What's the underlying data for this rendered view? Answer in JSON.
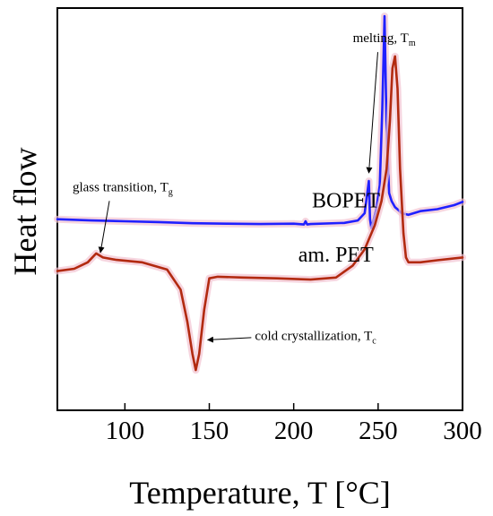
{
  "chart_data": {
    "type": "line",
    "xlabel": "Temperature, T [°C]",
    "ylabel": "Heat flow",
    "xlim": [
      60,
      300
    ],
    "xticks": [
      100,
      150,
      200,
      250,
      300
    ],
    "ylim": [
      0,
      100
    ],
    "yticks_visible": false,
    "grid": false,
    "legend": "none",
    "series": [
      {
        "name": "BOPET",
        "color": "#2020ff",
        "x": [
          60,
          80,
          100,
          120,
          140,
          160,
          180,
          200,
          206,
          207,
          208,
          210,
          230,
          238,
          242,
          244.5,
          245.2,
          246,
          247,
          249,
          251,
          252.5,
          253.8,
          255,
          256.5,
          258,
          260,
          262,
          264,
          268,
          275,
          285,
          295,
          300
        ],
        "y": [
          47.5,
          47.2,
          47.0,
          46.8,
          46.5,
          46.4,
          46.3,
          46.4,
          46.2,
          47.0,
          46.2,
          46.3,
          46.6,
          47.2,
          49.0,
          57.0,
          47.5,
          45.3,
          46.8,
          50.0,
          56.0,
          75.0,
          98.0,
          70.0,
          54.0,
          52.0,
          50.5,
          49.8,
          49.0,
          48.6,
          49.5,
          50.0,
          51.0,
          51.8
        ]
      },
      {
        "name": "am. PET",
        "color": "#b22a10",
        "x": [
          60,
          70,
          78,
          83,
          87,
          95,
          110,
          125,
          133,
          137,
          140,
          142,
          144,
          147,
          150,
          155,
          170,
          190,
          210,
          225,
          235,
          242,
          248,
          252,
          255,
          257,
          258.5,
          260,
          261.5,
          263,
          265,
          266.5,
          268,
          275,
          285,
          300
        ],
        "y": [
          34.6,
          35.2,
          36.8,
          39.0,
          38.0,
          37.4,
          36.8,
          35.0,
          30.0,
          22.0,
          14.0,
          10.0,
          14.0,
          25.0,
          32.8,
          33.2,
          33.0,
          32.8,
          32.5,
          33.0,
          36.0,
          40.0,
          46.0,
          52.0,
          60.0,
          72.0,
          85.0,
          88.0,
          80.0,
          60.0,
          44.0,
          38.0,
          36.8,
          36.8,
          37.3,
          38.0
        ]
      }
    ],
    "series_labels": [
      {
        "text": "BOPET",
        "x": 231,
        "y": 50.5
      },
      {
        "text": "am. PET",
        "x": 225,
        "y": 37.0
      }
    ],
    "annotations": [
      {
        "text": "melting, T",
        "sub": "m",
        "x": 235,
        "y": 91.5,
        "arrow_to": [
          244.5,
          59.0
        ]
      },
      {
        "text": "glass transition, T",
        "sub": "g",
        "x": 69,
        "y": 54.5,
        "arrow_to": [
          85.5,
          39.2
        ]
      },
      {
        "text": "cold crystallization, T",
        "sub": "c",
        "x": 177,
        "y": 17.5,
        "arrow_to": [
          149,
          17.5
        ]
      }
    ]
  }
}
